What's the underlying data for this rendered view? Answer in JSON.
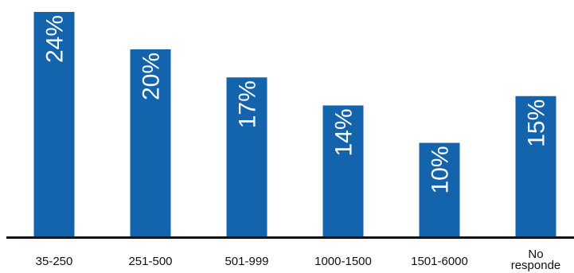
{
  "chart_data": {
    "type": "bar",
    "categories": [
      [
        "35-250"
      ],
      [
        "251-500"
      ],
      [
        "501-999"
      ],
      [
        "1000-1500"
      ],
      [
        "1501-6000"
      ],
      [
        "No",
        "responde"
      ]
    ],
    "values": [
      24,
      20,
      17,
      14,
      10,
      15
    ],
    "data_labels": [
      "24%",
      "20%",
      "17%",
      "14%",
      "10%",
      "15%"
    ],
    "ylim": [
      0,
      25
    ],
    "grid": false,
    "legend": "none",
    "colors": {
      "bar": "#1464ad",
      "axis": "#111111",
      "label_on_bar": "#ffffff",
      "tick_text": "#111111"
    }
  }
}
